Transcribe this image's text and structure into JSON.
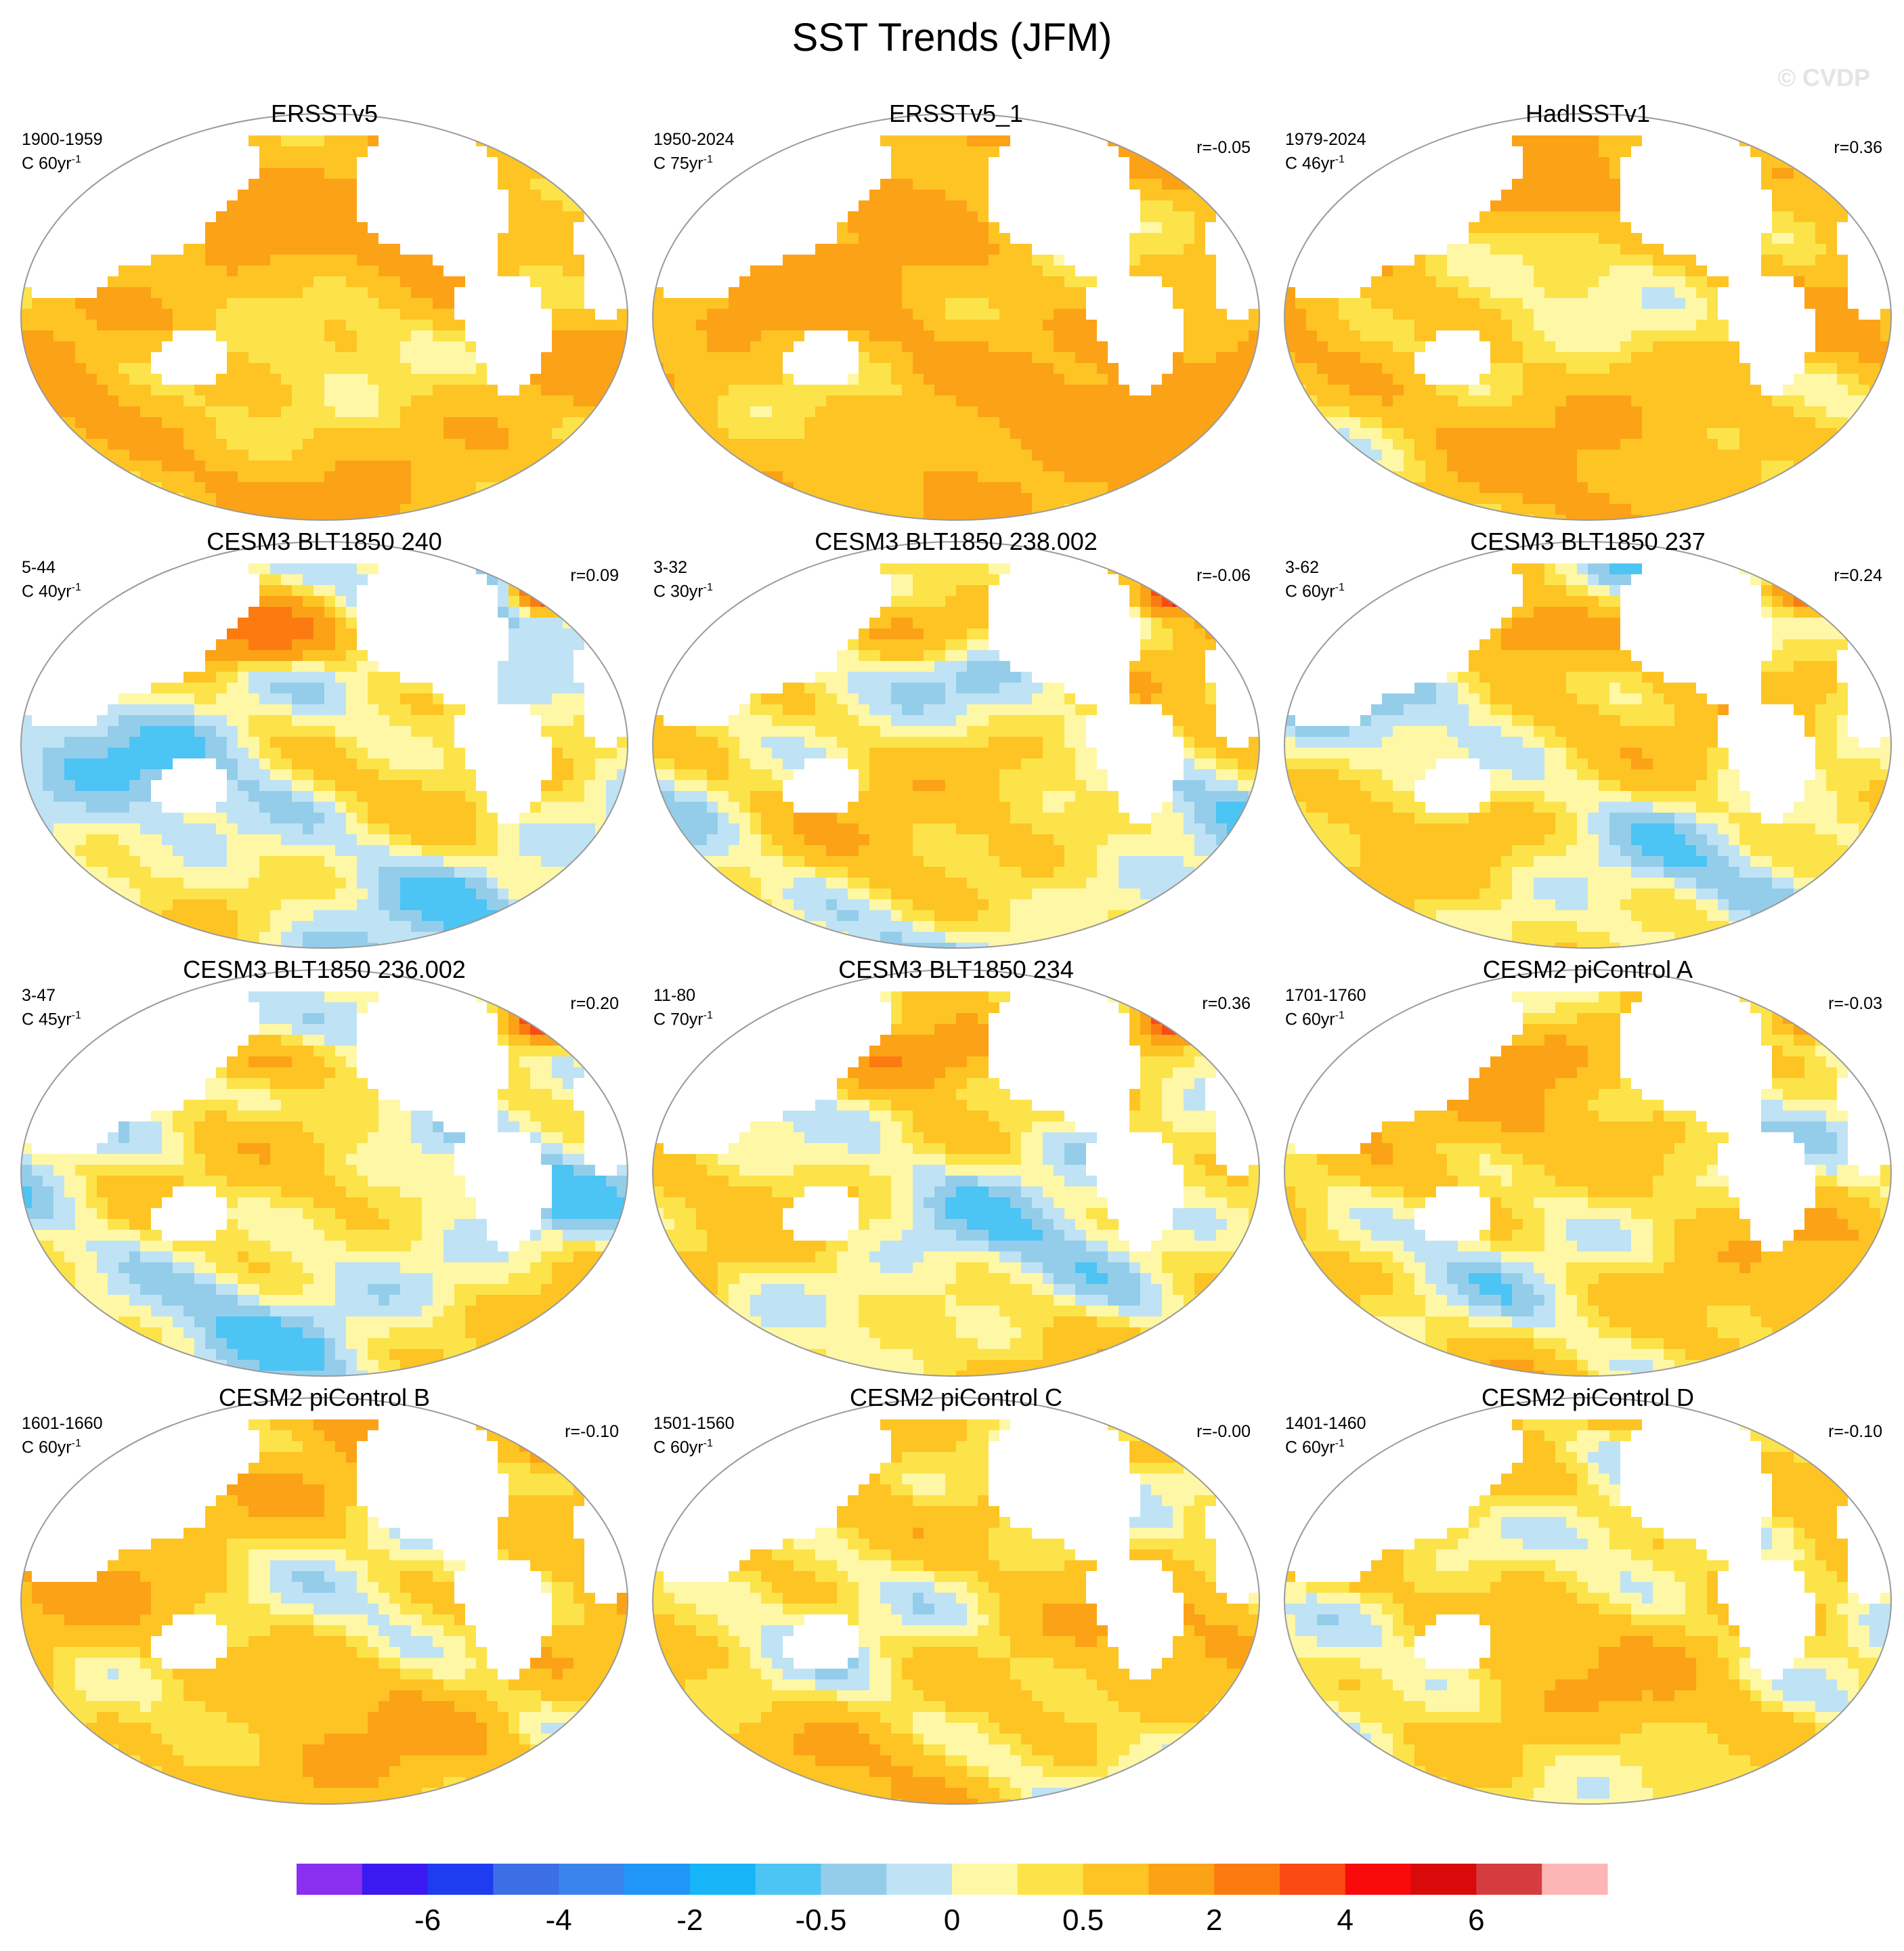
{
  "figure": {
    "title": "SST Trends (JFM)",
    "watermark": "© CVDP"
  },
  "panels": [
    {
      "title": "ERSSTv5",
      "period": "1900-1959",
      "units_prefix": "C 60yr",
      "units_exp": "-1",
      "corr": "",
      "warm": 0.75,
      "seed": 1,
      "npac": 0.3,
      "natl": 0.5
    },
    {
      "title": "ERSSTv5_1",
      "period": "1950-2024",
      "units_prefix": "C 75yr",
      "units_exp": "-1",
      "corr": "r=-0.05",
      "warm": 0.95,
      "seed": 2,
      "npac": 0.4,
      "natl": 0.4
    },
    {
      "title": "HadISSTv1",
      "period": "1979-2024",
      "units_prefix": "C 46yr",
      "units_exp": "-1",
      "corr": "r=0.36",
      "warm": 0.65,
      "seed": 3,
      "npac": 0.5,
      "natl": 0.3
    },
    {
      "title": "CESM3 BLT1850 240",
      "period": "5-44",
      "units_prefix": "C 40yr",
      "units_exp": "-1",
      "corr": "r=0.09",
      "warm": 0.1,
      "seed": 4,
      "npac": 2.5,
      "natl": 4.5
    },
    {
      "title": "CESM3 BLT1850 238.002",
      "period": "3-32",
      "units_prefix": "C 30yr",
      "units_exp": "-1",
      "corr": "r=-0.06",
      "warm": 0.3,
      "seed": 5,
      "npac": 1.2,
      "natl": 5.5
    },
    {
      "title": "CESM3 BLT1850 237",
      "period": "3-62",
      "units_prefix": "C 60yr",
      "units_exp": "-1",
      "corr": "r=0.24",
      "warm": 0.3,
      "seed": 6,
      "npac": 1.5,
      "natl": 3.5
    },
    {
      "title": "CESM3 BLT1850 236.002",
      "period": "3-47",
      "units_prefix": "C 45yr",
      "units_exp": "-1",
      "corr": "r=0.20",
      "warm": 0.15,
      "seed": 7,
      "npac": 1.5,
      "natl": 4.5
    },
    {
      "title": "CESM3 BLT1850 234",
      "period": "11-80",
      "units_prefix": "C 70yr",
      "units_exp": "-1",
      "corr": "r=0.36",
      "warm": 0.2,
      "seed": 8,
      "npac": 1.8,
      "natl": 4.8
    },
    {
      "title": "CESM2 piControl A",
      "period": "1701-1760",
      "units_prefix": "C 60yr",
      "units_exp": "-1",
      "corr": "r=-0.03",
      "warm": 0.45,
      "seed": 9,
      "npac": 0.6,
      "natl": 1.8
    },
    {
      "title": "CESM2 piControl B",
      "period": "1601-1660",
      "units_prefix": "C 60yr",
      "units_exp": "-1",
      "corr": "r=-0.10",
      "warm": 0.55,
      "seed": 10,
      "npac": 0.5,
      "natl": 1.6
    },
    {
      "title": "CESM2 piControl C",
      "period": "1501-1560",
      "units_prefix": "C 60yr",
      "units_exp": "-1",
      "corr": "r=-0.00",
      "warm": 0.5,
      "seed": 11,
      "npac": -0.4,
      "natl": 1.2
    },
    {
      "title": "CESM2 piControl D",
      "period": "1401-1460",
      "units_prefix": "C 60yr",
      "units_exp": "-1",
      "corr": "r=-0.10",
      "warm": 0.45,
      "seed": 12,
      "npac": 0.6,
      "natl": -0.3
    }
  ],
  "colorbar": {
    "colors": [
      "#8a2ef0",
      "#3a1af0",
      "#1e3cf0",
      "#3c6ee6",
      "#3a84ee",
      "#2096f8",
      "#18b4f8",
      "#4cc4f4",
      "#94cdea",
      "#bfe3f4",
      "#fef7a6",
      "#fce34a",
      "#fdc424",
      "#fca217",
      "#fc7b10",
      "#fb4a14",
      "#f80a0a",
      "#d80a0a",
      "#d43c40",
      "#fdb6b6"
    ],
    "boundaries": [
      -8,
      -7,
      -6,
      -5,
      -4,
      -3,
      -2,
      -1,
      -0.5,
      -0.25,
      0,
      0.25,
      0.5,
      1,
      2,
      3,
      4,
      5,
      6,
      7,
      8
    ],
    "labels": [
      "-6",
      "-4",
      "-2",
      "-0.5",
      "0",
      "0.5",
      "2",
      "4",
      "6"
    ]
  }
}
